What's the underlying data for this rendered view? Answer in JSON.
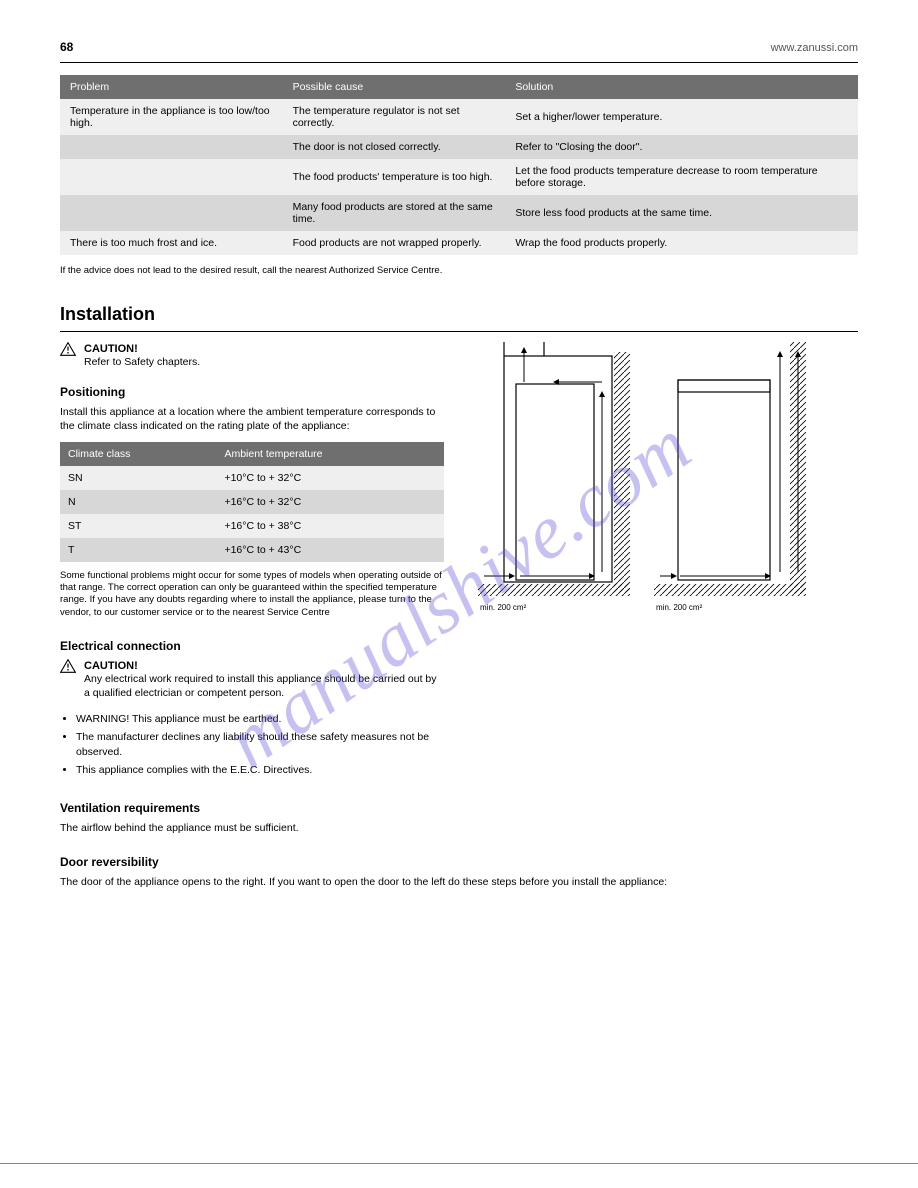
{
  "header": {
    "page_number": "68",
    "lang_url": "www.zanussi.com"
  },
  "troubleshoot_table": {
    "columns": [
      "Problem",
      "Possible cause",
      "Solution"
    ],
    "rows": [
      [
        "Temperature in the appliance is too low/too high.",
        "The temperature regulator is not set correctly.",
        "Set a higher/lower temperature."
      ],
      [
        "",
        "The door is not closed correctly.",
        "Refer to \"Closing the door\"."
      ],
      [
        "",
        "The food products' temperature is too high.",
        "Let the food products temperature decrease to room temperature before storage."
      ],
      [
        "",
        "Many food products are stored at the same time.",
        "Store less food products at the same time."
      ],
      [
        "There is too much frost and ice.",
        "Food products are not wrapped properly.",
        "Wrap the food products properly."
      ]
    ],
    "row_shading": [
      "light",
      "shade",
      "light",
      "shade",
      "light"
    ],
    "note": "If the advice does not lead to the desired result, call the nearest Authorized Service Centre.",
    "header_bg": "#6f6f6f",
    "header_color": "#ffffff",
    "shade_bg": "#d7d7d7",
    "light_bg": "#efefef"
  },
  "installation": {
    "heading": "Installation",
    "caution_label": "CAUTION!",
    "caution_text": "Refer to Safety chapters.",
    "positioning_title": "Positioning",
    "positioning_text": "Install this appliance at a location where the ambient temperature corresponds to the climate class indicated on the rating plate of the appliance:",
    "climate_table": {
      "columns": [
        "Climate class",
        "Ambient temperature"
      ],
      "rows": [
        [
          "SN",
          "+10°C to + 32°C"
        ],
        [
          "N",
          "+16°C to + 32°C"
        ],
        [
          "ST",
          "+16°C to + 38°C"
        ],
        [
          "T",
          "+16°C to + 43°C"
        ]
      ],
      "row_shading": [
        "light",
        "shade",
        "light",
        "shade"
      ]
    },
    "climate_note": "Some functional problems might occur for some types of models when operating outside of that range. The correct operation can only be guaranteed within the specified temperature range. If you have any doubts regarding where to install the appliance, please turn to the vendor, to our customer service or to the nearest Service Centre",
    "connection_title": "Electrical connection",
    "caution2_label": "CAUTION!",
    "caution2_text": "Any electrical work required to install this appliance should be carried out by a qualified electrician or competent person.",
    "connection_points": [
      "WARNING! This appliance must be earthed.",
      "The manufacturer declines any liability should these safety measures not be observed.",
      "This appliance complies with the E.E.C. Directives."
    ],
    "ventilation_title": "Ventilation requirements",
    "ventilation_text": "The airflow behind the appliance must be sufficient.",
    "door_title": "Door reversibility",
    "door_text": "The door of the appliance opens to the right. If you want to open the door to the left do these steps before you install the appliance:"
  },
  "diagrams": {
    "arrow_color": "#000000",
    "outline_color": "#000000",
    "hatch_color": "#000000",
    "dimension_label_1": "min. 200 cm²",
    "dimension_label_2": "min. 200 cm²",
    "label_font_size": 8
  },
  "footer": {
    "text": ""
  },
  "watermark": "manualshive.com"
}
